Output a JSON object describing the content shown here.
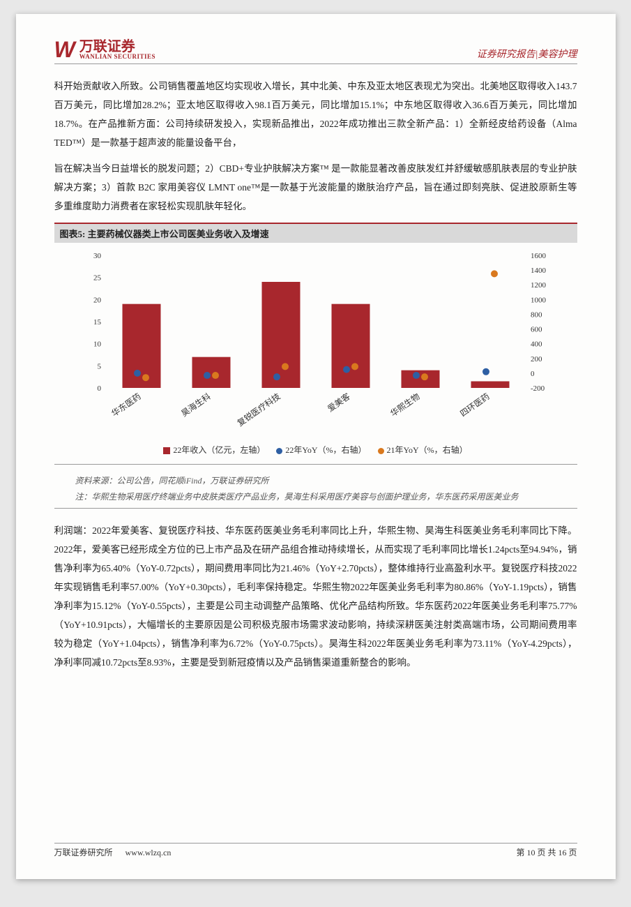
{
  "header": {
    "logo_cn": "万联证券",
    "logo_en": "WANLIAN SECURITIES",
    "right": "证券研究报告|美容护理"
  },
  "para1": "科开始贡献收入所致。公司销售覆盖地区均实现收入增长，其中北美、中东及亚太地区表现尤为突出。北美地区取得收入143.7 百万美元，同比增加28.2%；亚太地区取得收入98.1百万美元，同比增加15.1%；中东地区取得收入36.6百万美元，同比增加18.7%。在产品推新方面：公司持续研发投入，实现新品推出，2022年成功推出三款全新产品：1）全新经皮给药设备（Alma TED™）是一款基于超声波的能量设备平台，",
  "para2": "旨在解决当今日益增长的脱发问题；2）CBD+专业护肤解决方案™ 是一款能显著改善皮肤发红并舒缓敏感肌肤表层的专业护肤解决方案；3）首款 B2C 家用美容仪 LMNT one™是一款基于光波能量的嫩肤治疗产品，旨在通过即刻亮肤、促进胶原新生等多重维度助力消费者在家轻松实现肌肤年轻化。",
  "chart": {
    "title": "图表5:  主要药械仪器类上市公司医美业务收入及增速",
    "type": "bar+scatter",
    "categories": [
      "华东医药",
      "昊海生科",
      "复锐医疗科技",
      "爱美客",
      "华熙生物",
      "四环医药"
    ],
    "bar_values": [
      19,
      7,
      24,
      19,
      4,
      1.5
    ],
    "scatter1_values_right": [
      0,
      -30,
      -50,
      50,
      -30,
      20
    ],
    "scatter2_values_right": [
      -60,
      -30,
      90,
      90,
      -50,
      1350
    ],
    "bar_color": "#a8272d",
    "scatter1_color": "#2e5fa3",
    "scatter2_color": "#d9791e",
    "left_axis": {
      "min": 0,
      "max": 30,
      "step": 5
    },
    "right_axis": {
      "min": -200,
      "max": 1600,
      "step": 200
    },
    "background_color": "#ffffff",
    "legend": [
      {
        "label": "22年收入（亿元，左轴）",
        "color": "#a8272d",
        "shape": "square"
      },
      {
        "label": "22年YoY（%，右轴）",
        "color": "#2e5fa3",
        "shape": "dot"
      },
      {
        "label": "21年YoY（%，右轴）",
        "color": "#d9791e",
        "shape": "dot"
      }
    ]
  },
  "source1": "资料来源：公司公告，同花顺iFind，万联证券研究所",
  "source2": "注：华熙生物采用医疗终端业务中皮肤类医疗产品业务，昊海生科采用医疗美容与创面护理业务，华东医药采用医美业务",
  "para3": "利润端：2022年爱美客、复锐医疗科技、华东医药医美业务毛利率同比上升，华熙生物、昊海生科医美业务毛利率同比下降。2022年，爱美客已经形成全方位的已上市产品及在研产品组合推动持续增长，从而实现了毛利率同比增长1.24pcts至94.94%，销售净利率为65.40%（YoY-0.72pcts），期间费用率同比为21.46%（YoY+2.70pcts），整体维持行业高盈利水平。复锐医疗科技2022年实现销售毛利率57.00%（YoY+0.30pcts），毛利率保持稳定。华熙生物2022年医美业务毛利率为80.86%（YoY-1.19pcts），销售净利率为15.12%（YoY-0.55pcts），主要是公司主动调整产品策略、优化产品结构所致。华东医药2022年医美业务毛利率75.77%（YoY+10.91pcts），大幅增长的主要原因是公司积极克服市场需求波动影响，持续深耕医美注射类高端市场，公司期间费用率较为稳定（YoY+1.04pcts），销售净利率为6.72%（YoY-0.75pcts）。昊海生科2022年医美业务毛利率为73.11%（YoY-4.29pcts），净利率同减10.72pcts至8.93%，主要是受到新冠疫情以及产品销售渠道重新整合的影响。",
  "footer": {
    "left": "万联证券研究所",
    "url": "www.wlzq.cn",
    "right": "第 10 页 共 16 页"
  }
}
